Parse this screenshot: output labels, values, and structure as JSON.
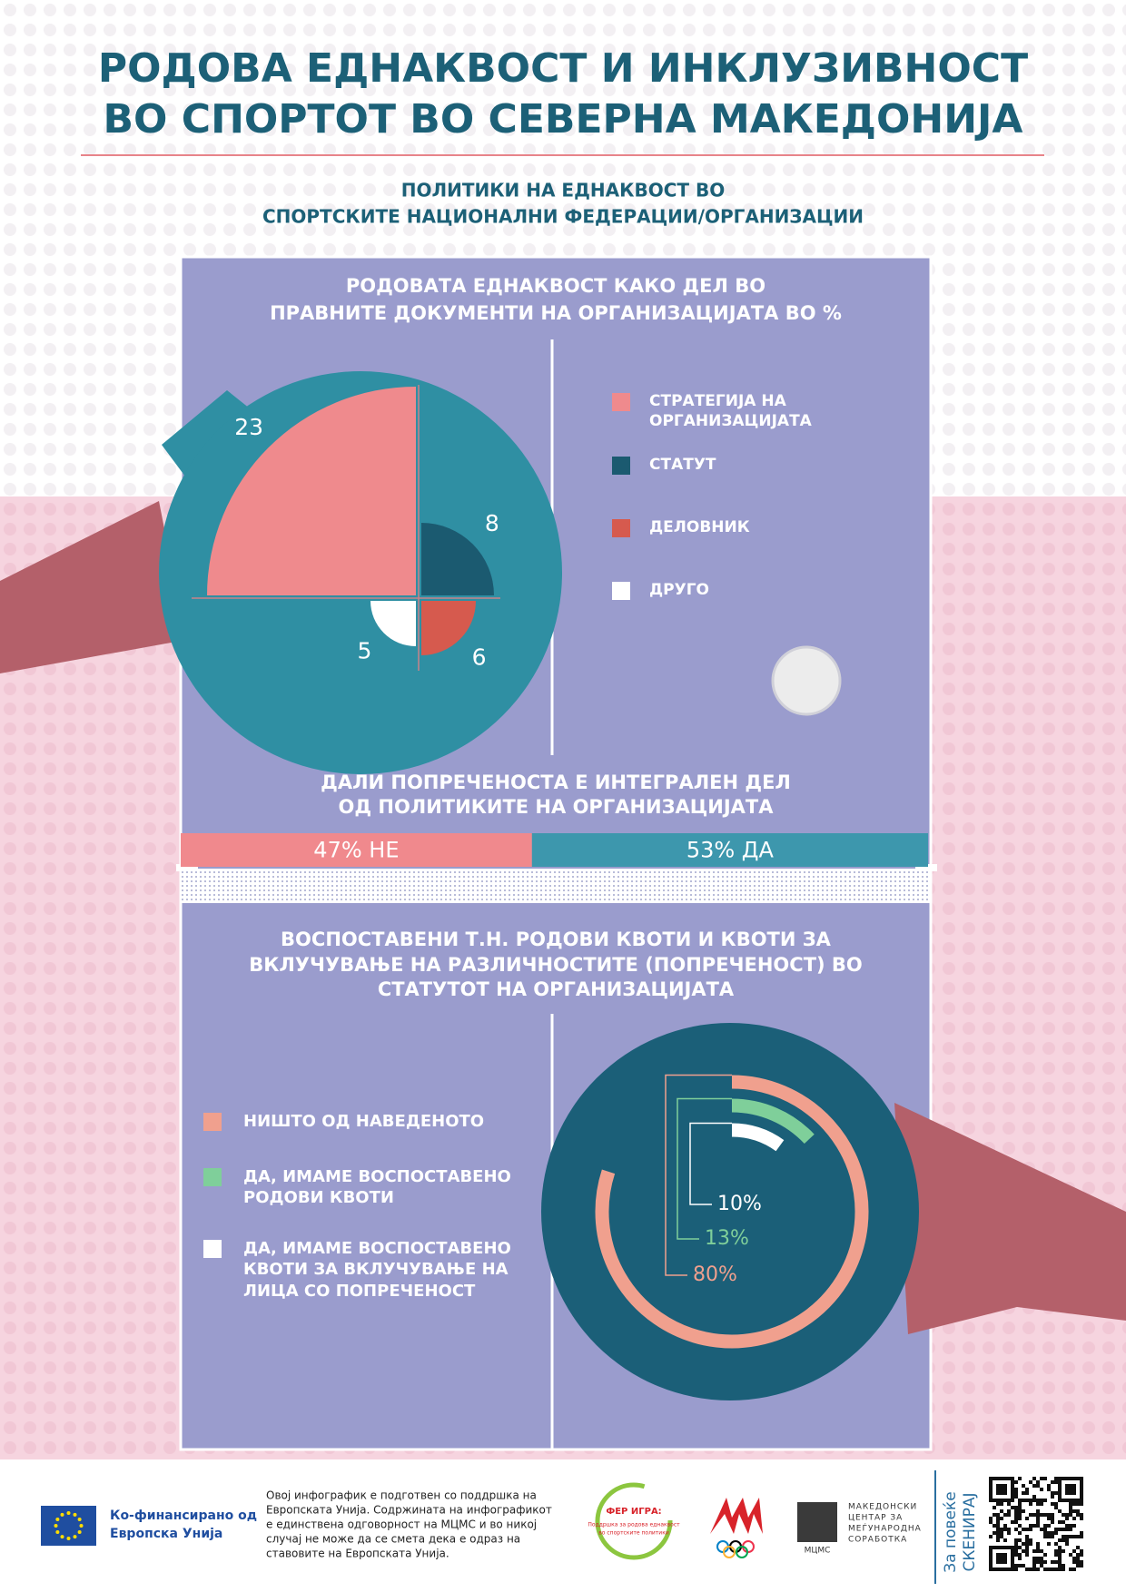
{
  "header": {
    "title": [
      "РОДОВА ЕДНАКВОСТ И ИНКЛУЗИВНОСТ",
      "ВО СПОРТОТ ВО СЕВЕРНА МАКЕДОНИЈА"
    ],
    "subtitle": [
      "ПОЛИТИКИ НА ЕДНАКВОСТ ВО",
      "СПОРТСКИТЕ НАЦИОНАЛНИ ФЕДЕРАЦИИ/ОРГАНИЗАЦИИ"
    ]
  },
  "chart_data": [
    {
      "type": "polar_quadrant",
      "title": [
        "РОДОВАТА ЕДНАКВОСТ КАКО ДЕЛ ВО",
        "ПРАВНИТЕ ДОКУМЕНТИ НА ОРГАНИЗАЦИЈАТА ВО %"
      ],
      "categories": [
        "СТРАТЕГИЈА НА ОРГАНИЗАЦИЈАТА",
        "СТАТУТ",
        "ДЕЛОВНИК",
        "ДРУГО"
      ],
      "values": [
        23,
        8,
        6,
        5
      ],
      "colors": [
        "#ef8a8d",
        "#1b5a70",
        "#d65a4e",
        "#ffffff"
      ]
    },
    {
      "type": "stacked_bar",
      "title": [
        "ДАЛИ ПОПРЕЧЕНОСТА Е ИНТЕГРАЛЕН ДЕЛ",
        "ОД ПОЛИТИКИТЕ НА ОРГАНИЗАЦИЈАТА"
      ],
      "values": [
        47,
        53
      ],
      "value_labels": [
        "47% НЕ",
        "53% ДА"
      ],
      "colors": [
        "#f0898d",
        "#3d97ad"
      ]
    },
    {
      "type": "radial_bar",
      "title": [
        "ВОСПОСТАВЕНИ Т.Н. РОДОВИ КВОТИ И КВОТИ ЗА",
        "ВКЛУЧУВАЊЕ НА РАЗЛИЧНОСТИТЕ (ПОПРЕЧЕНОСТ) ВО",
        "СТАТУТОТ НА ОРГАНИЗАЦИЈАТА"
      ],
      "categories": [
        "НИШТО ОД НАВЕДЕНОТО",
        "ДА, ИМАМЕ ВОСПОСТАВЕНО РОДОВИ КВОТИ",
        "ДА, ИМАМЕ ВОСПОСТАВЕНО КВОТИ ЗА ВКЛУЧУВАЊЕ НА ЛИЦА СО ПОПРЕЧЕНОСТ"
      ],
      "values": [
        80,
        13,
        10
      ],
      "value_labels": [
        "80%",
        "13%",
        "10%"
      ],
      "colors": [
        "#f0a08e",
        "#7fcf9a",
        "#ffffff"
      ]
    }
  ],
  "footer": {
    "cofunded": [
      "Ко-финансирано од",
      "Европска Унија"
    ],
    "disclaimer": [
      "Овој инфографик е подготвен со поддршка на",
      "Европската Унија. Содржината на инфографикот",
      "е единствена одговорност на МЦМС и во никој",
      "случај не може да се смета дека е одраз на",
      "ставовите на Европската Унија."
    ],
    "fairplay_title": "ФЕР ИГРА:",
    "fairplay_text": [
      "Поддршка за родова еднаквост",
      "во спортските политики"
    ],
    "mcms": "МЦМС",
    "mcms_name": [
      "МАКЕДОНСКИ",
      "ЦЕНТАР ЗА",
      "МЕЃУНАРОДНА",
      "СОРАБОТКА"
    ],
    "scan": [
      "За повеќе",
      "СКЕНИРАЈ"
    ]
  }
}
